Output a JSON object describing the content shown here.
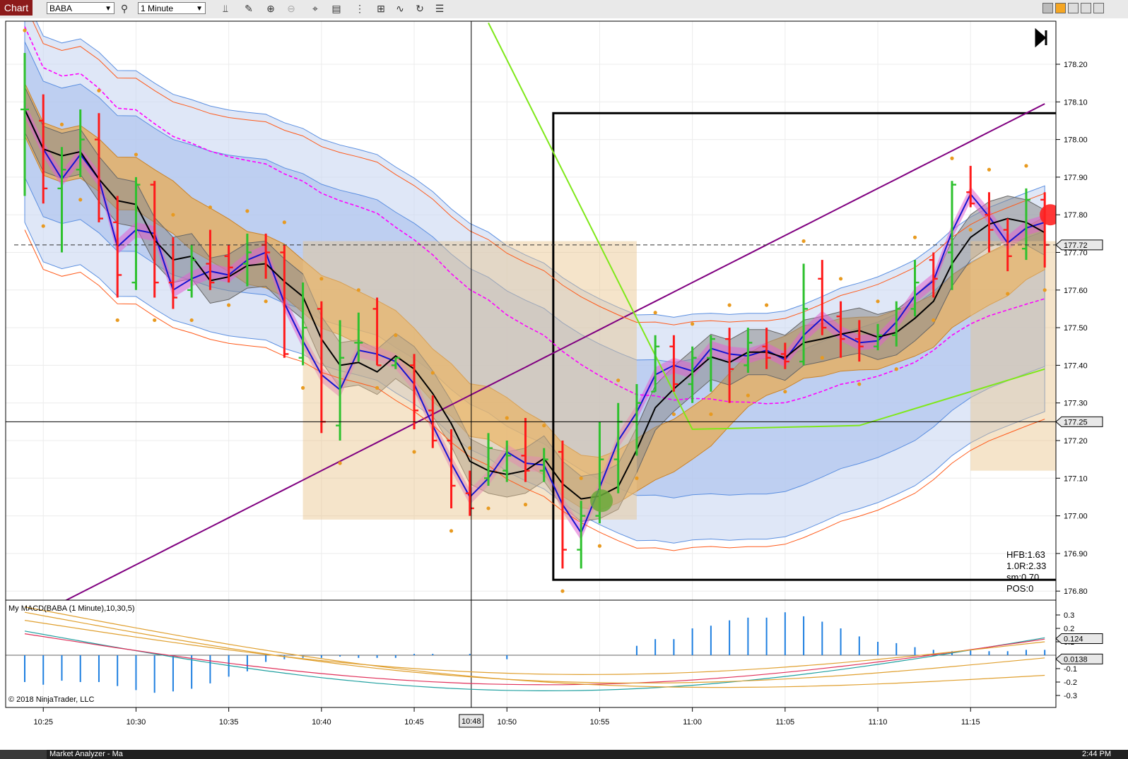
{
  "toolbar": {
    "chart_tab": "Chart",
    "instrument": "BABA",
    "interval": "1 Minute"
  },
  "indicator_label": "My MACD(BABA (1 Minute),10,30,5)",
  "copyright": "© 2018 NinjaTrader, LLC",
  "stats": [
    "HFB:1.63",
    "1.0R:2.33",
    "sm:0.70",
    "POS:0"
  ],
  "status": {
    "task": "Market Analyzer - Ma",
    "clock": "2:44 PM"
  },
  "colors": {
    "up": "#2ec12e",
    "down": "#ff1a1a",
    "accent": "#8b1a1a"
  },
  "chart_data": [
    {
      "type": "candlestick",
      "title": "BABA (1 Minute)",
      "xlabel": "",
      "ylabel": "",
      "x_ticks": [
        "10:25",
        "10:30",
        "10:35",
        "10:40",
        "10:45",
        "10:50",
        "10:55",
        "11:00",
        "11:05",
        "11:10",
        "11:15"
      ],
      "cursor_time": "10:48",
      "y_ticks": [
        "178.20",
        "178.10",
        "178.00",
        "177.90",
        "177.80",
        "177.70",
        "177.60",
        "177.50",
        "177.40",
        "177.30",
        "177.20",
        "177.10",
        "177.00",
        "176.90",
        "176.80"
      ],
      "ylim": [
        176.78,
        178.29
      ],
      "price_markers": [
        "177.72",
        "177.25"
      ],
      "bars": [
        {
          "t": "10:24",
          "o": 178.08,
          "h": 178.23,
          "l": 177.85,
          "c": 178.08
        },
        {
          "t": "10:25",
          "o": 178.05,
          "h": 178.12,
          "l": 177.83,
          "c": 177.87
        },
        {
          "t": "10:26",
          "o": 177.87,
          "h": 177.98,
          "l": 177.7,
          "c": 177.92
        },
        {
          "t": "10:27",
          "o": 177.92,
          "h": 178.08,
          "l": 177.9,
          "c": 178.0
        },
        {
          "t": "10:28",
          "o": 178.0,
          "h": 178.07,
          "l": 177.78,
          "c": 177.79
        },
        {
          "t": "10:29",
          "o": 177.78,
          "h": 177.85,
          "l": 177.58,
          "c": 177.64
        },
        {
          "t": "10:30",
          "o": 177.62,
          "h": 177.9,
          "l": 177.6,
          "c": 177.88
        },
        {
          "t": "10:31",
          "o": 177.88,
          "h": 177.89,
          "l": 177.58,
          "c": 177.62
        },
        {
          "t": "10:32",
          "o": 177.62,
          "h": 177.74,
          "l": 177.55,
          "c": 177.58
        },
        {
          "t": "10:33",
          "o": 177.6,
          "h": 177.72,
          "l": 177.58,
          "c": 177.68
        },
        {
          "t": "10:34",
          "o": 177.67,
          "h": 177.76,
          "l": 177.6,
          "c": 177.62
        },
        {
          "t": "10:35",
          "o": 177.69,
          "h": 177.72,
          "l": 177.62,
          "c": 177.66
        },
        {
          "t": "10:36",
          "o": 177.67,
          "h": 177.75,
          "l": 177.61,
          "c": 177.7
        },
        {
          "t": "10:37",
          "o": 177.72,
          "h": 177.75,
          "l": 177.63,
          "c": 177.7
        },
        {
          "t": "10:38",
          "o": 177.7,
          "h": 177.72,
          "l": 177.42,
          "c": 177.43
        },
        {
          "t": "10:39",
          "o": 177.42,
          "h": 177.62,
          "l": 177.4,
          "c": 177.5
        },
        {
          "t": "10:40",
          "o": 177.55,
          "h": 177.57,
          "l": 177.22,
          "c": 177.25
        },
        {
          "t": "10:41",
          "o": 177.24,
          "h": 177.52,
          "l": 177.2,
          "c": 177.42
        },
        {
          "t": "10:42",
          "o": 177.46,
          "h": 177.54,
          "l": 177.41,
          "c": 177.46
        },
        {
          "t": "10:43",
          "o": 177.55,
          "h": 177.58,
          "l": 177.4,
          "c": 177.4
        },
        {
          "t": "10:44",
          "o": 177.4,
          "h": 177.42,
          "l": 177.39,
          "c": 177.42
        },
        {
          "t": "10:45",
          "o": 177.4,
          "h": 177.43,
          "l": 177.23,
          "c": 177.28
        },
        {
          "t": "10:46",
          "o": 177.28,
          "h": 177.32,
          "l": 177.18,
          "c": 177.2
        },
        {
          "t": "10:47",
          "o": 177.2,
          "h": 177.23,
          "l": 177.02,
          "c": 177.08
        },
        {
          "t": "10:48",
          "o": 177.06,
          "h": 177.12,
          "l": 177.0,
          "c": 177.02
        },
        {
          "t": "10:49",
          "o": 177.1,
          "h": 177.22,
          "l": 177.08,
          "c": 177.18
        },
        {
          "t": "10:50",
          "o": 177.12,
          "h": 177.2,
          "l": 177.09,
          "c": 177.16
        },
        {
          "t": "10:51",
          "o": 177.16,
          "h": 177.26,
          "l": 177.09,
          "c": 177.12
        },
        {
          "t": "10:52",
          "o": 177.12,
          "h": 177.18,
          "l": 177.09,
          "c": 177.15
        },
        {
          "t": "10:53",
          "o": 177.17,
          "h": 177.2,
          "l": 176.86,
          "c": 176.91
        },
        {
          "t": "10:54",
          "o": 176.91,
          "h": 177.04,
          "l": 176.86,
          "c": 177.0
        },
        {
          "t": "10:55",
          "o": 177.0,
          "h": 177.25,
          "l": 176.98,
          "c": 177.15
        },
        {
          "t": "10:56",
          "o": 177.15,
          "h": 177.3,
          "l": 177.06,
          "c": 177.25
        },
        {
          "t": "10:57",
          "o": 177.25,
          "h": 177.35,
          "l": 177.16,
          "c": 177.3
        },
        {
          "t": "10:58",
          "o": 177.33,
          "h": 177.48,
          "l": 177.33,
          "c": 177.45
        },
        {
          "t": "10:59",
          "o": 177.45,
          "h": 177.48,
          "l": 177.33,
          "c": 177.35
        },
        {
          "t": "11:00",
          "o": 177.35,
          "h": 177.45,
          "l": 177.3,
          "c": 177.42
        },
        {
          "t": "11:01",
          "o": 177.42,
          "h": 177.48,
          "l": 177.33,
          "c": 177.47
        },
        {
          "t": "11:02",
          "o": 177.47,
          "h": 177.5,
          "l": 177.3,
          "c": 177.39
        },
        {
          "t": "11:03",
          "o": 177.4,
          "h": 177.5,
          "l": 177.38,
          "c": 177.46
        },
        {
          "t": "11:04",
          "o": 177.45,
          "h": 177.5,
          "l": 177.39,
          "c": 177.42
        },
        {
          "t": "11:05",
          "o": 177.43,
          "h": 177.46,
          "l": 177.39,
          "c": 177.41
        },
        {
          "t": "11:06",
          "o": 177.41,
          "h": 177.67,
          "l": 177.4,
          "c": 177.55
        },
        {
          "t": "11:07",
          "o": 177.63,
          "h": 177.68,
          "l": 177.48,
          "c": 177.5
        },
        {
          "t": "11:08",
          "o": 177.53,
          "h": 177.57,
          "l": 177.42,
          "c": 177.47
        },
        {
          "t": "11:09",
          "o": 177.47,
          "h": 177.52,
          "l": 177.41,
          "c": 177.45
        },
        {
          "t": "11:10",
          "o": 177.45,
          "h": 177.51,
          "l": 177.44,
          "c": 177.48
        },
        {
          "t": "11:11",
          "o": 177.48,
          "h": 177.57,
          "l": 177.45,
          "c": 177.55
        },
        {
          "t": "11:12",
          "o": 177.55,
          "h": 177.68,
          "l": 177.53,
          "c": 177.62
        },
        {
          "t": "11:13",
          "o": 177.68,
          "h": 177.7,
          "l": 177.58,
          "c": 177.63
        },
        {
          "t": "11:14",
          "o": 177.7,
          "h": 177.89,
          "l": 177.6,
          "c": 177.88
        },
        {
          "t": "11:15",
          "o": 177.86,
          "h": 177.93,
          "l": 177.82,
          "c": 177.83
        },
        {
          "t": "11:16",
          "o": 177.8,
          "h": 177.86,
          "l": 177.7,
          "c": 177.76
        },
        {
          "t": "11:17",
          "o": 177.76,
          "h": 177.79,
          "l": 177.65,
          "c": 177.69
        },
        {
          "t": "11:18",
          "o": 177.71,
          "h": 177.87,
          "l": 177.68,
          "c": 177.84
        },
        {
          "t": "11:19",
          "o": 177.84,
          "h": 177.86,
          "l": 177.66,
          "c": 177.72
        }
      ]
    },
    {
      "type": "bar",
      "title": "My MACD(BABA (1 Minute),10,30,5)",
      "xlabel": "",
      "ylabel": "",
      "y_ticks": [
        "0.3",
        "0.2",
        "0.1",
        "-0.1",
        "-0.2",
        "-0.3"
      ],
      "ylim": [
        -0.35,
        0.35
      ],
      "value_markers": [
        "0.124",
        "0.0138"
      ],
      "histogram": [
        -0.2,
        -0.22,
        -0.19,
        -0.2,
        -0.2,
        -0.23,
        -0.26,
        -0.28,
        -0.27,
        -0.25,
        -0.21,
        -0.16,
        -0.12,
        -0.05,
        -0.03,
        -0.02,
        -0.02,
        -0.01,
        -0.02,
        -0.02,
        -0.02,
        0.01,
        0.01,
        0.0,
        0.01,
        0.0,
        -0.03,
        0.0,
        0.0,
        0.0,
        0.0,
        0.0,
        0.0,
        0.07,
        0.12,
        0.12,
        0.2,
        0.22,
        0.26,
        0.28,
        0.28,
        0.32,
        0.29,
        0.25,
        0.2,
        0.14,
        0.1,
        0.09,
        0.06,
        0.04,
        0.03,
        0.04,
        0.03,
        0.03,
        0.04,
        0.04,
        0.04,
        0.03,
        0.03,
        0.01
      ]
    }
  ]
}
